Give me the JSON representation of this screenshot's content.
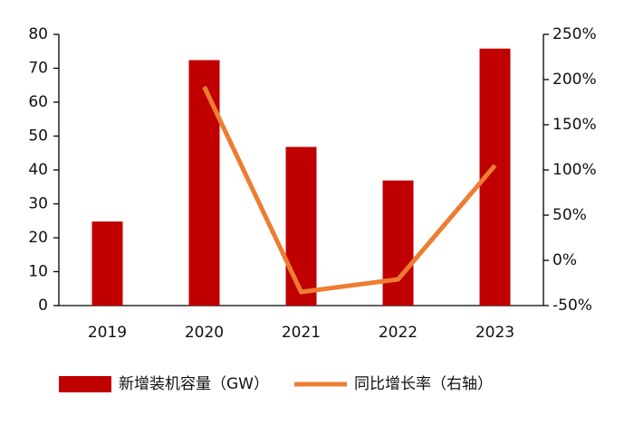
{
  "chart_data": {
    "type": "bar",
    "categories": [
      "2019",
      "2020",
      "2021",
      "2022",
      "2023"
    ],
    "series": [
      {
        "name": "新增装机容量（GW）",
        "color": "#c00000",
        "type": "bar",
        "values": [
          24.8,
          72.4,
          46.8,
          36.9,
          75.8
        ]
      },
      {
        "name": "同比增长率（右轴）",
        "color": "#ed7d31",
        "type": "line",
        "axis": "y2",
        "values": [
          null,
          192,
          -35,
          -21,
          105
        ]
      }
    ],
    "ylim": [
      0,
      80
    ],
    "yticks": [
      0,
      10,
      20,
      30,
      40,
      50,
      60,
      70,
      80
    ],
    "y2lim": [
      -50,
      250
    ],
    "y2ticks": [
      {
        "value": -50,
        "label": "-50%"
      },
      {
        "value": 0,
        "label": "0%"
      },
      {
        "value": 50,
        "label": "50%"
      },
      {
        "value": 100,
        "label": "100%"
      },
      {
        "value": 150,
        "label": "150%"
      },
      {
        "value": 200,
        "label": "200%"
      },
      {
        "value": 250,
        "label": "250%"
      }
    ],
    "legend": "bottom"
  }
}
